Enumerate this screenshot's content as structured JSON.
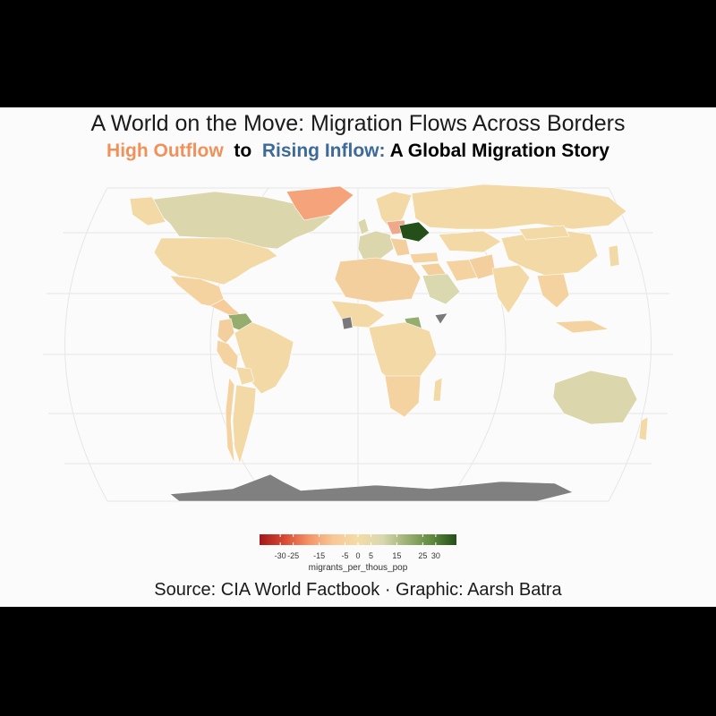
{
  "title": "A World on the Move: Migration Flows Across Borders",
  "subtitle": {
    "part1": "High Outflow",
    "part1_color": "#f0915a",
    "part2": "to",
    "part3": "Rising Inflow:",
    "part3_color": "#3d6a99",
    "part4": "A Global Migration Story"
  },
  "caption": "Source: CIA World Factbook · Graphic: Aarsh Batra",
  "legend": {
    "title": "migrants_per_thous_pop",
    "ticks": [
      "-30",
      "-25",
      "-15",
      "-5",
      "0",
      "5",
      "15",
      "25",
      "30"
    ],
    "tick_values": [
      -30,
      -25,
      -15,
      -5,
      0,
      5,
      15,
      25,
      30
    ],
    "range": [
      -38,
      38
    ],
    "colors": [
      "#a3171b",
      "#d94832",
      "#f49467",
      "#f9c896",
      "#f3dca6",
      "#d9d8ae",
      "#9bb072",
      "#5f8a3e",
      "#244f18"
    ]
  },
  "map": {
    "projection": "Robinson",
    "fill_variable": "migrants_per_thous_pop",
    "missing_color": "#808080",
    "base_color": "#f3d9a5"
  }
}
